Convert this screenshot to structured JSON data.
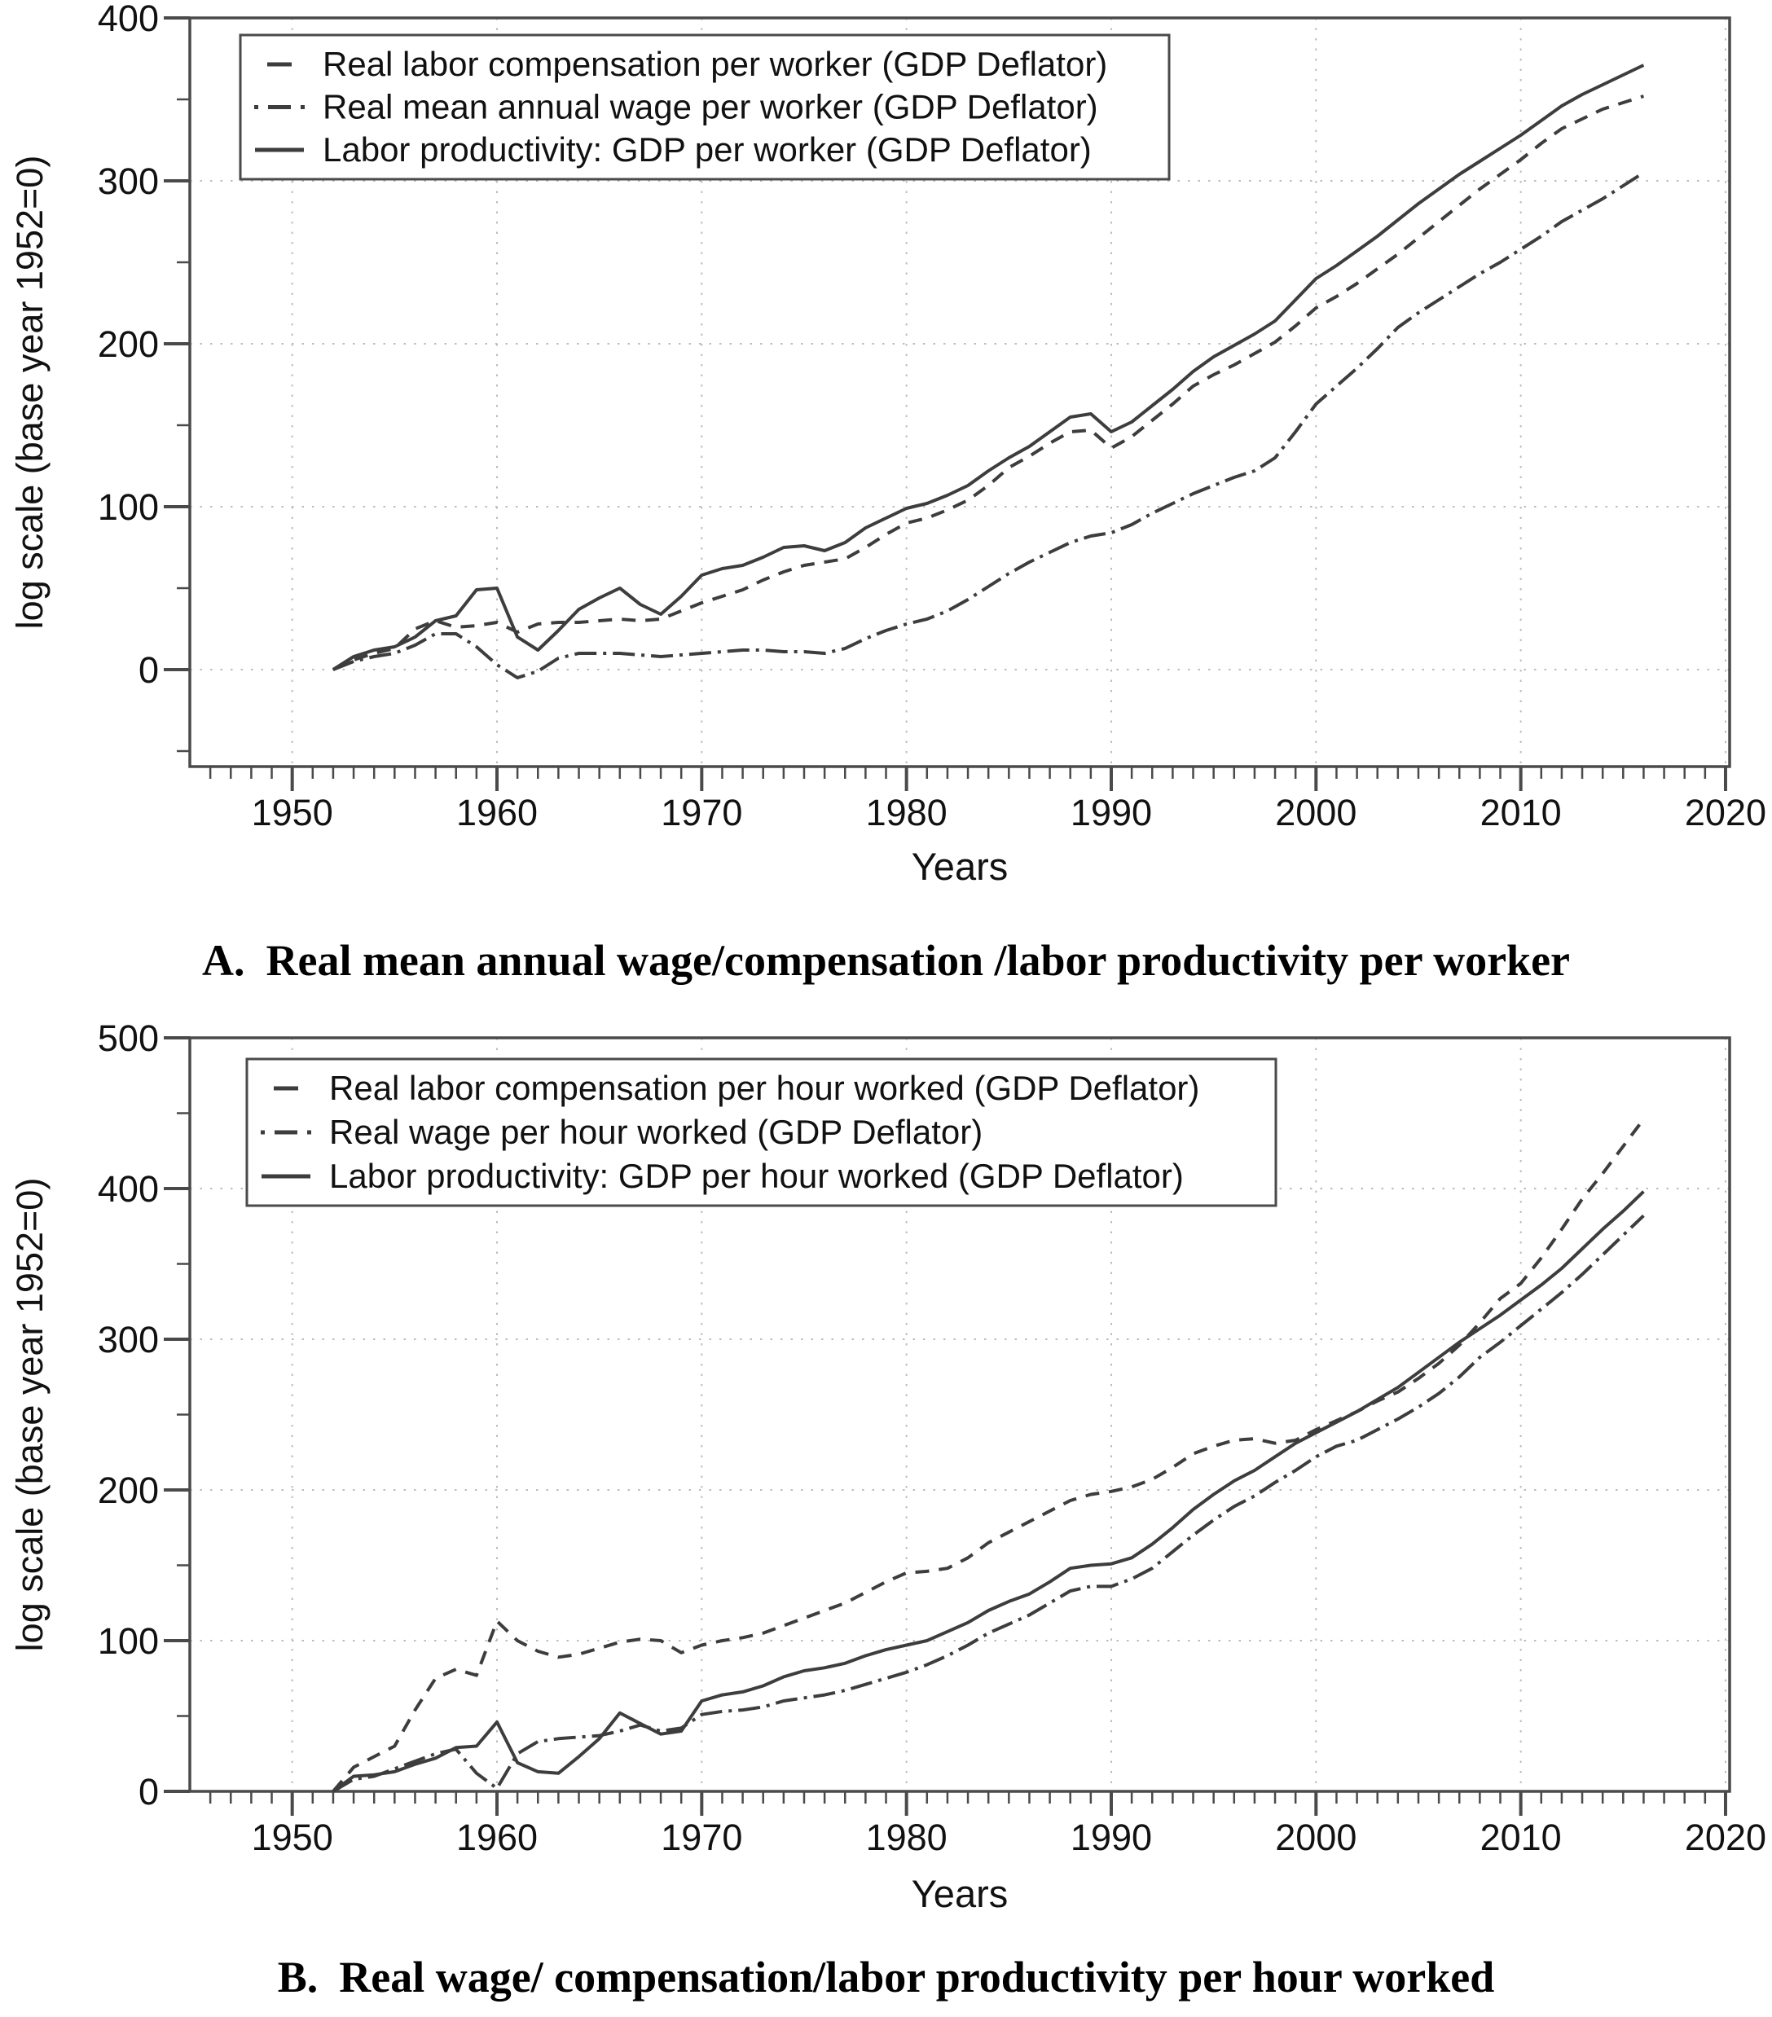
{
  "style_colors": {
    "line": "#3d3d3d",
    "grid": "#bcbcbc",
    "axis": "#4a4a4a",
    "text": "#111111",
    "background": "#ffffff"
  },
  "chart_data": [
    {
      "type": "line",
      "panel_label": "A.",
      "title": "Real mean annual wage/compensation /labor productivity per worker",
      "xlabel": "Years",
      "ylabel": "log scale (base year 1952=0)",
      "xlim": [
        1945,
        2020.2
      ],
      "ylim": [
        -59.5,
        400
      ],
      "xticks": [
        1950,
        1960,
        1970,
        1980,
        1990,
        2000,
        2010,
        2020
      ],
      "yticks": [
        0,
        100,
        200,
        300,
        400
      ],
      "grid": true,
      "legend_position": "top-left",
      "x": [
        1952,
        1953,
        1954,
        1955,
        1956,
        1957,
        1958,
        1959,
        1960,
        1961,
        1962,
        1963,
        1964,
        1965,
        1966,
        1967,
        1968,
        1969,
        1970,
        1971,
        1972,
        1973,
        1974,
        1975,
        1976,
        1977,
        1978,
        1979,
        1980,
        1981,
        1982,
        1983,
        1984,
        1985,
        1986,
        1987,
        1988,
        1989,
        1990,
        1991,
        1992,
        1993,
        1994,
        1995,
        1996,
        1997,
        1998,
        1999,
        2000,
        2001,
        2002,
        2003,
        2004,
        2005,
        2006,
        2007,
        2008,
        2009,
        2010,
        2011,
        2012,
        2013,
        2014,
        2015,
        2016
      ],
      "series": [
        {
          "name": "Real labor compensation per worker (GDP Deflator)",
          "style": "dash",
          "values": [
            0,
            6,
            10,
            13,
            25,
            30,
            26,
            27,
            29,
            23,
            28,
            29,
            29,
            30,
            31,
            30,
            31,
            36,
            41,
            45,
            49,
            55,
            60,
            64,
            66,
            68,
            75,
            83,
            90,
            93,
            98,
            104,
            113,
            124,
            131,
            139,
            146,
            147,
            136,
            143,
            153,
            163,
            174,
            181,
            187,
            194,
            201,
            211,
            222,
            229,
            237,
            246,
            255,
            265,
            275,
            285,
            295,
            304,
            313,
            323,
            332,
            338,
            344,
            348,
            352
          ]
        },
        {
          "name": "Real mean annual wage  per worker (GDP Deflator)",
          "style": "dashdot",
          "values": [
            0,
            5,
            8,
            10,
            15,
            22,
            22,
            14,
            3,
            -5,
            -1,
            7,
            10,
            10,
            10,
            9,
            8,
            9,
            10,
            11,
            12,
            12,
            11,
            11,
            10,
            13,
            19,
            24,
            28,
            31,
            36,
            43,
            51,
            59,
            66,
            72,
            78,
            82,
            84,
            89,
            96,
            102,
            108,
            113,
            118,
            122,
            130,
            146,
            163,
            174,
            185,
            197,
            210,
            219,
            227,
            235,
            243,
            250,
            258,
            266,
            275,
            282,
            289,
            297,
            305
          ]
        },
        {
          "name": "Labor productivity: GDP per worker (GDP Deflator)",
          "style": "solid",
          "values": [
            0,
            8,
            12,
            14,
            20,
            30,
            33,
            49,
            50,
            20,
            12,
            24,
            37,
            44,
            50,
            40,
            34,
            45,
            58,
            62,
            64,
            69,
            75,
            76,
            73,
            78,
            87,
            93,
            99,
            102,
            107,
            113,
            122,
            130,
            137,
            146,
            155,
            157,
            146,
            152,
            162,
            172,
            183,
            192,
            199,
            206,
            214,
            227,
            240,
            248,
            257,
            266,
            276,
            286,
            295,
            304,
            312,
            320,
            328,
            337,
            346,
            353,
            359,
            365,
            371
          ]
        }
      ]
    },
    {
      "type": "line",
      "panel_label": "B.",
      "title": "Real wage/ compensation/labor productivity per hour worked",
      "xlabel": "Years",
      "ylabel": "log scale (base year 1952=0)",
      "xlim": [
        1945,
        2020.2
      ],
      "ylim": [
        0,
        500
      ],
      "xticks": [
        1950,
        1960,
        1970,
        1980,
        1990,
        2000,
        2010,
        2020
      ],
      "yticks": [
        0,
        100,
        200,
        300,
        400,
        500
      ],
      "grid": true,
      "legend_position": "top-left",
      "x": [
        1952,
        1953,
        1954,
        1955,
        1956,
        1957,
        1958,
        1959,
        1960,
        1961,
        1962,
        1963,
        1964,
        1965,
        1966,
        1967,
        1968,
        1969,
        1970,
        1971,
        1972,
        1973,
        1974,
        1975,
        1976,
        1977,
        1978,
        1979,
        1980,
        1981,
        1982,
        1983,
        1984,
        1985,
        1986,
        1987,
        1988,
        1989,
        1990,
        1991,
        1992,
        1993,
        1994,
        1995,
        1996,
        1997,
        1998,
        1999,
        2000,
        2001,
        2002,
        2003,
        2004,
        2005,
        2006,
        2007,
        2008,
        2009,
        2010,
        2011,
        2012,
        2013,
        2014,
        2015,
        2016
      ],
      "series": [
        {
          "name": "Real labor compensation per hour worked (GDP Deflator)",
          "style": "dash",
          "values": [
            0,
            16,
            23,
            30,
            54,
            75,
            81,
            77,
            113,
            100,
            93,
            89,
            91,
            95,
            99,
            101,
            100,
            92,
            97,
            100,
            102,
            105,
            110,
            115,
            120,
            125,
            132,
            139,
            145,
            146,
            148,
            155,
            165,
            172,
            179,
            186,
            193,
            197,
            199,
            202,
            207,
            215,
            224,
            229,
            233,
            234,
            231,
            233,
            240,
            246,
            252,
            259,
            265,
            274,
            284,
            296,
            311,
            327,
            337,
            354,
            373,
            393,
            410,
            428,
            446
          ]
        },
        {
          "name": "Real wage per hour worked (GDP Deflator)",
          "style": "dashdot",
          "values": [
            0,
            8,
            10,
            15,
            20,
            25,
            28,
            12,
            2,
            25,
            33,
            35,
            36,
            37,
            40,
            44,
            40,
            42,
            51,
            53,
            54,
            56,
            60,
            62,
            64,
            67,
            71,
            75,
            79,
            84,
            90,
            97,
            105,
            111,
            117,
            125,
            133,
            136,
            136,
            141,
            148,
            159,
            170,
            180,
            189,
            196,
            205,
            213,
            222,
            229,
            233,
            240,
            247,
            255,
            264,
            275,
            288,
            298,
            309,
            320,
            331,
            343,
            356,
            369,
            382
          ]
        },
        {
          "name": "Labor productivity: GDP per hour worked (GDP Deflator)",
          "style": "solid",
          "values": [
            0,
            10,
            11,
            13,
            18,
            22,
            29,
            30,
            46,
            19,
            13,
            12,
            23,
            35,
            52,
            45,
            38,
            40,
            60,
            64,
            66,
            70,
            76,
            80,
            82,
            85,
            90,
            94,
            97,
            100,
            106,
            112,
            120,
            126,
            131,
            139,
            148,
            150,
            151,
            155,
            164,
            175,
            187,
            197,
            206,
            213,
            222,
            231,
            238,
            245,
            252,
            260,
            268,
            278,
            288,
            298,
            307,
            316,
            326,
            336,
            347,
            360,
            373,
            385,
            398
          ]
        }
      ]
    }
  ]
}
